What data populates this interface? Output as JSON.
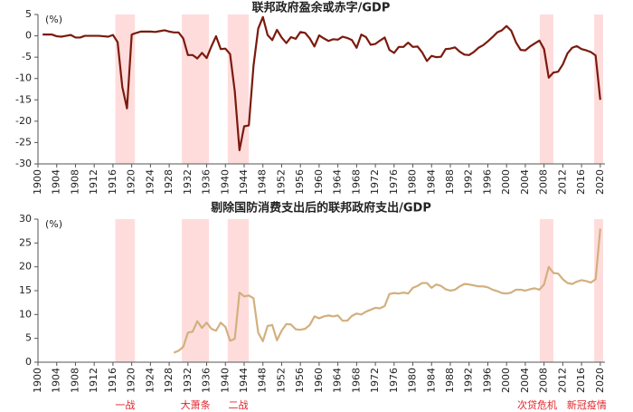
{
  "chart_data": [
    {
      "type": "line",
      "title": "联邦政府盈余或赤字/GDP",
      "y_label": "(%)",
      "x": [
        1901,
        1902,
        1903,
        1904,
        1905,
        1906,
        1907,
        1908,
        1909,
        1910,
        1911,
        1912,
        1913,
        1914,
        1915,
        1916,
        1917,
        1918,
        1919,
        1920,
        1921,
        1922,
        1923,
        1924,
        1925,
        1926,
        1927,
        1928,
        1929,
        1930,
        1931,
        1932,
        1933,
        1934,
        1935,
        1936,
        1937,
        1938,
        1939,
        1940,
        1941,
        1942,
        1943,
        1944,
        1945,
        1946,
        1947,
        1948,
        1949,
        1950,
        1951,
        1952,
        1953,
        1954,
        1955,
        1956,
        1957,
        1958,
        1959,
        1960,
        1961,
        1962,
        1963,
        1964,
        1965,
        1966,
        1967,
        1968,
        1969,
        1970,
        1971,
        1972,
        1973,
        1974,
        1975,
        1976,
        1977,
        1978,
        1979,
        1980,
        1981,
        1982,
        1983,
        1984,
        1985,
        1986,
        1987,
        1988,
        1989,
        1990,
        1991,
        1992,
        1993,
        1994,
        1995,
        1996,
        1997,
        1998,
        1999,
        2000,
        2001,
        2002,
        2003,
        2004,
        2005,
        2006,
        2007,
        2008,
        2009,
        2010,
        2011,
        2012,
        2013,
        2014,
        2015,
        2016,
        2017,
        2018,
        2019,
        2020
      ],
      "series": [
        {
          "color": "#7b1a0e",
          "values": [
            0.3,
            0.3,
            0.3,
            -0.1,
            -0.2,
            0,
            0.2,
            -0.4,
            -0.4,
            0,
            0,
            0,
            0,
            -0.1,
            -0.2,
            0.2,
            -1.5,
            -12,
            -17,
            0.3,
            0.7,
            1,
            1,
            1,
            0.9,
            1.1,
            1.3,
            1,
            0.8,
            0.8,
            -0.6,
            -4.5,
            -4.5,
            -5.3,
            -4,
            -5.2,
            -2.5,
            -0.1,
            -3.1,
            -3,
            -4.3,
            -13,
            -26.8,
            -21.2,
            -21,
            -7,
            1.7,
            4.4,
            0.2,
            -1,
            1.4,
            -0.4,
            -1.7,
            -0.3,
            -0.7,
            0.9,
            0.7,
            -0.6,
            -2.5,
            0.1,
            -0.6,
            -1.2,
            -0.8,
            -0.9,
            -0.2,
            -0.5,
            -1,
            -2.8,
            0.3,
            -0.3,
            -2.1,
            -1.9,
            -1.1,
            -0.4,
            -3.3,
            -4,
            -2.6,
            -2.6,
            -1.6,
            -2.6,
            -2.5,
            -3.9,
            -5.9,
            -4.7,
            -5,
            -4.9,
            -3.1,
            -3,
            -2.7,
            -3.7,
            -4.4,
            -4.5,
            -3.8,
            -2.8,
            -2.2,
            -1.3,
            -0.3,
            0.8,
            1.3,
            2.3,
            1.2,
            -1.5,
            -3.3,
            -3.4,
            -2.5,
            -1.8,
            -1.1,
            -3.1,
            -9.8,
            -8.6,
            -8.4,
            -6.7,
            -4.1,
            -2.8,
            -2.4,
            -3.1,
            -3.4,
            -3.8,
            -4.6,
            -15
          ]
        }
      ],
      "xlim": [
        1900,
        2021
      ],
      "xticks": [
        1900,
        1904,
        1908,
        1912,
        1916,
        1920,
        1924,
        1928,
        1932,
        1936,
        1940,
        1944,
        1948,
        1952,
        1956,
        1960,
        1964,
        1968,
        1972,
        1976,
        1980,
        1984,
        1988,
        1992,
        1996,
        2000,
        2004,
        2008,
        2012,
        2016,
        2020
      ],
      "ylim": [
        -30,
        5
      ],
      "yticks": [
        5,
        0,
        -5,
        -10,
        -15,
        -20,
        -25,
        -30
      ]
    },
    {
      "type": "line",
      "title": "剔除国防消费支出后的联邦政府支出/GDP",
      "y_label": "(%)",
      "x": [
        1929,
        1930,
        1931,
        1932,
        1933,
        1934,
        1935,
        1936,
        1937,
        1938,
        1939,
        1940,
        1941,
        1942,
        1943,
        1944,
        1945,
        1946,
        1947,
        1948,
        1949,
        1950,
        1951,
        1952,
        1953,
        1954,
        1955,
        1956,
        1957,
        1958,
        1959,
        1960,
        1961,
        1962,
        1963,
        1964,
        1965,
        1966,
        1967,
        1968,
        1969,
        1970,
        1971,
        1972,
        1973,
        1974,
        1975,
        1976,
        1977,
        1978,
        1979,
        1980,
        1981,
        1982,
        1983,
        1984,
        1985,
        1986,
        1987,
        1988,
        1989,
        1990,
        1991,
        1992,
        1993,
        1994,
        1995,
        1996,
        1997,
        1998,
        1999,
        2000,
        2001,
        2002,
        2003,
        2004,
        2005,
        2006,
        2007,
        2008,
        2009,
        2010,
        2011,
        2012,
        2013,
        2014,
        2015,
        2016,
        2017,
        2018,
        2019,
        2020
      ],
      "series": [
        {
          "color": "#d2b07e",
          "values": [
            2,
            2.4,
            3.2,
            6.2,
            6.4,
            8.6,
            7.2,
            8.3,
            7,
            6.6,
            8.3,
            7.4,
            4.5,
            4.9,
            14.6,
            13.8,
            14,
            13.4,
            6.2,
            4.4,
            7.6,
            7.8,
            4.6,
            6.6,
            8,
            7.9,
            6.9,
            6.8,
            7,
            7.8,
            9.6,
            9.2,
            9.6,
            9.8,
            9.6,
            9.8,
            8.7,
            8.7,
            9.7,
            10.2,
            10,
            10.6,
            11,
            11.4,
            11.3,
            11.8,
            14.3,
            14.5,
            14.4,
            14.6,
            14.4,
            15.6,
            16,
            16.6,
            16.6,
            15.6,
            16.3,
            16,
            15.3,
            15,
            15.2,
            15.9,
            16.4,
            16.3,
            16.1,
            15.9,
            15.9,
            15.7,
            15.2,
            14.9,
            14.5,
            14.4,
            14.6,
            15.2,
            15.2,
            15,
            15.3,
            15.5,
            15.2,
            16.3,
            20,
            18.7,
            18.6,
            17.4,
            16.6,
            16.4,
            16.9,
            17.2,
            17,
            16.7,
            17.4,
            28
          ]
        }
      ],
      "xlim": [
        1900,
        2021
      ],
      "xticks": [
        1900,
        1904,
        1908,
        1912,
        1916,
        1920,
        1924,
        1928,
        1932,
        1936,
        1940,
        1944,
        1948,
        1952,
        1956,
        1960,
        1964,
        1968,
        1972,
        1976,
        1980,
        1984,
        1988,
        1992,
        1996,
        2000,
        2004,
        2008,
        2012,
        2016,
        2020
      ],
      "ylim": [
        0,
        30
      ],
      "yticks": [
        0,
        5,
        10,
        15,
        20,
        25,
        30
      ],
      "annotations": [
        {
          "label": "一战",
          "x": [
            1916.5,
            1920.7
          ]
        },
        {
          "label": "大萧条",
          "x": [
            1930.7,
            1936.5
          ]
        },
        {
          "label": "二战",
          "x": [
            1940.5,
            1945
          ]
        },
        {
          "label": "次贷危机",
          "x": [
            2007.1,
            2010
          ]
        },
        {
          "label": "新冠疫情",
          "x": [
            2018.7,
            2020.6
          ]
        }
      ]
    }
  ]
}
